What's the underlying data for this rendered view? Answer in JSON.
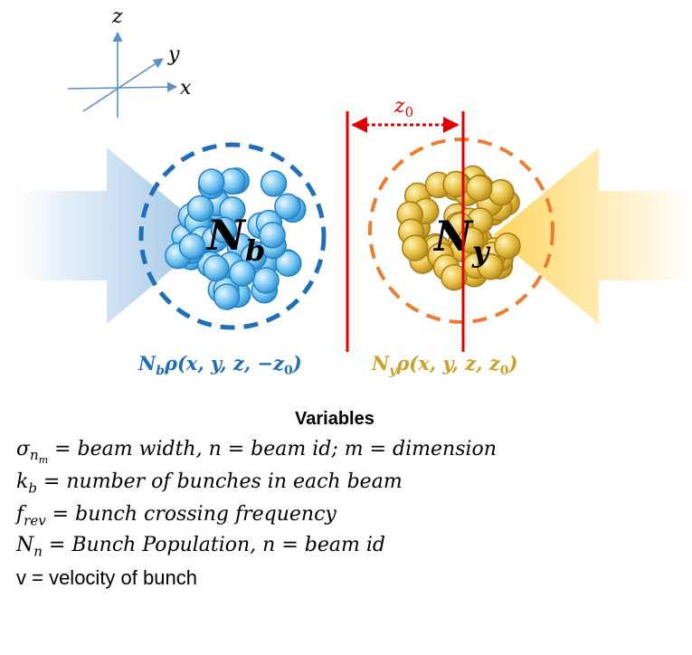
{
  "axes": {
    "z": "z",
    "y": "y",
    "x": "x"
  },
  "separation_label": {
    "base": "z",
    "sub": "0"
  },
  "bunches": {
    "blue": {
      "label_base": "N",
      "label_sub": "b",
      "formula": "N_bρ(x, y, z, −z_0)",
      "color": "#1f6fb8"
    },
    "yellow": {
      "label_base": "N",
      "label_sub": "y",
      "formula": "N_yρ(x, y, z, z_0)",
      "color": "#c9a227"
    }
  },
  "variables": {
    "title": "Variables",
    "line1": {
      "sym": "σ",
      "sub": "n",
      "subsub": "m",
      "text": " = beam width, n = beam id;  m = dimension"
    },
    "line2": {
      "sym": "k",
      "sub": "b",
      "text": " = number of bunches in each beam"
    },
    "line3": {
      "sym": "f",
      "sub": "rev",
      "text": " = bunch crossing frequency"
    },
    "line4": {
      "sym": "N",
      "sub": "n",
      "text": " = Bunch Population, n = beam id"
    },
    "line5": {
      "text": "v = velocity of bunch"
    }
  },
  "colors": {
    "red": "#e00000",
    "blue_ring": "#1f6fb8",
    "orange_ring": "#ee7d31",
    "blue_arrow": "#9cc2e5",
    "yellow_arrow": "#ffd966"
  }
}
